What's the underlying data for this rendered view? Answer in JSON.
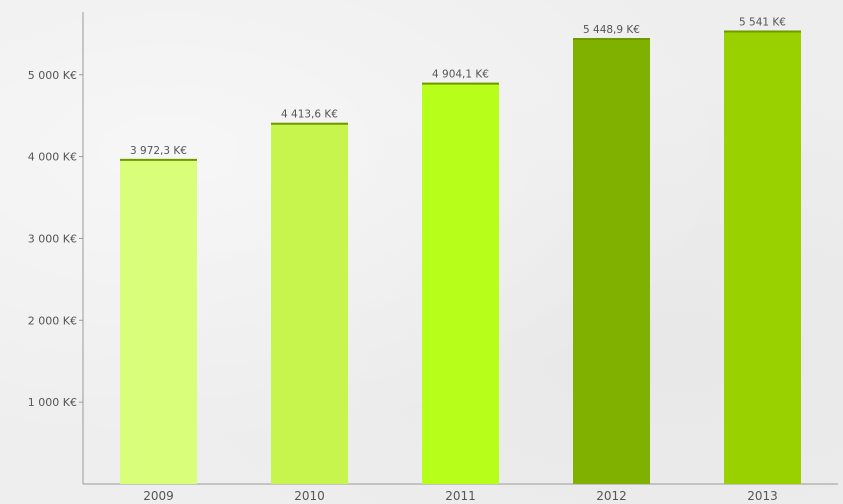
{
  "chart_data": {
    "type": "bar",
    "categories": [
      "2009",
      "2010",
      "2011",
      "2012",
      "2013"
    ],
    "values": [
      3972.3,
      4413.6,
      4904.1,
      5448.9,
      5541
    ],
    "data_labels": [
      "3 972,3 K€",
      "4 413,6 K€",
      "4 904,1 K€",
      "5 448,9 K€",
      "5 541 K€"
    ],
    "colors": [
      "#d9ff7a",
      "#c8f54d",
      "#b7ff1a",
      "#80b100",
      "#99d100"
    ],
    "cap_color": "#6e9a00",
    "y_ticks": [
      1000,
      2000,
      3000,
      4000,
      5000
    ],
    "y_tick_labels": [
      "1 000 K€",
      "2 000 K€",
      "3 000 K€",
      "4 000 K€",
      "5 000 K€"
    ],
    "ylim": [
      0,
      5800
    ],
    "grid": false,
    "title": "",
    "xlabel": "",
    "ylabel": ""
  }
}
